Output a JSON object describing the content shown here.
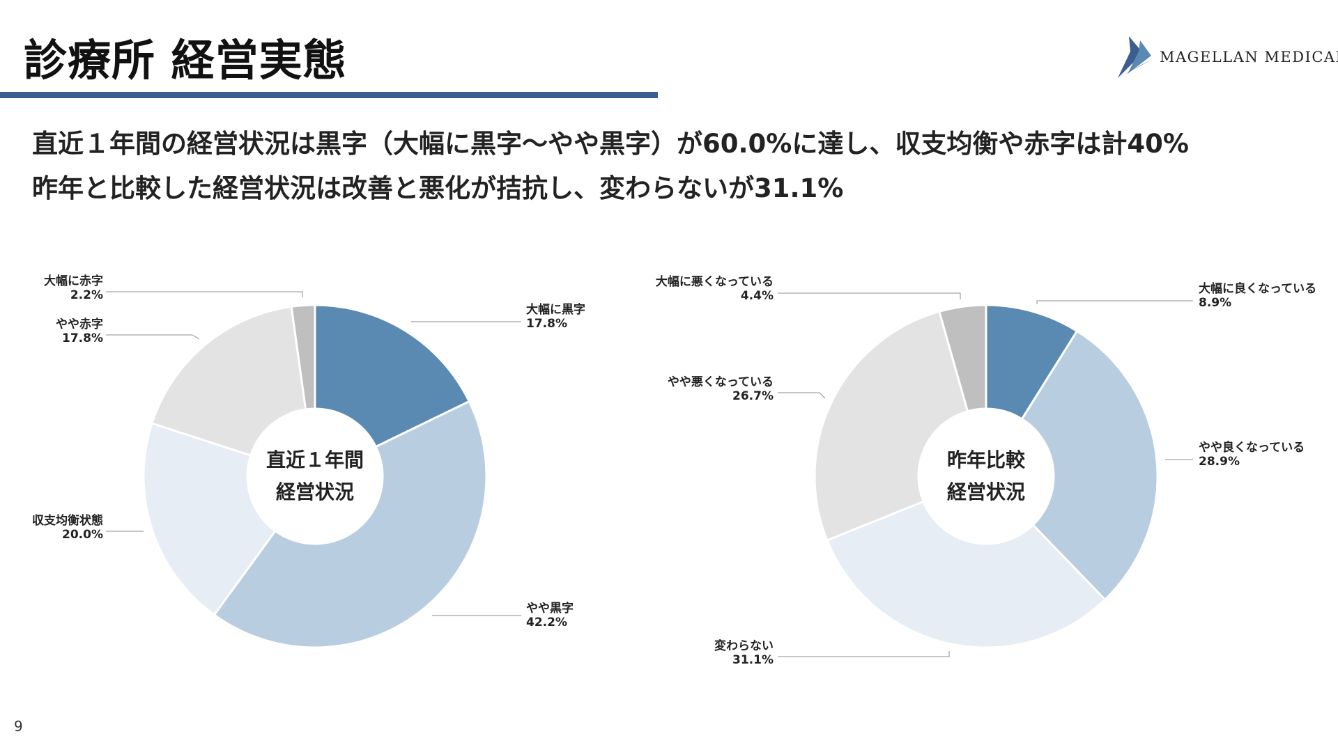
{
  "page": {
    "title": "診療所 経営実態",
    "summary_lines": [
      "直近１年間の経営状況は黒字（大幅に黒字〜やや黒字）が60.0%に達し、収支均衡や赤字は計40%",
      "昨年と比較した経営状況は改善と悪化が拮抗し、変わらないが31.1%"
    ],
    "page_number": "9"
  },
  "logo": {
    "text": "MAGELLAN MEDICAL",
    "icon": "magellan-sail-logo",
    "color": "#3b5d8f"
  },
  "chart_data": [
    {
      "type": "pie",
      "title": "",
      "center_label": [
        "直近１年間",
        "経営状況"
      ],
      "categories": [
        "大幅に黒字",
        "やや黒字",
        "収支均衡状態",
        "やや赤字",
        "大幅に赤字"
      ],
      "values": [
        17.8,
        42.2,
        20.0,
        17.8,
        2.2
      ],
      "value_labels": [
        "17.8%",
        "42.2%",
        "20.0%",
        "17.8%",
        "2.2%"
      ],
      "colors": [
        "#5a8ab2",
        "#b9cde0",
        "#e6edf5",
        "#e3e3e3",
        "#bfbfbf"
      ],
      "donut": true
    },
    {
      "type": "pie",
      "title": "",
      "center_label": [
        "昨年比較",
        "経営状況"
      ],
      "categories": [
        "大幅に良くなっている",
        "やや良くなっている",
        "変わらない",
        "やや悪くなっている",
        "大幅に悪くなっている"
      ],
      "values": [
        8.9,
        28.9,
        31.1,
        26.7,
        4.4
      ],
      "value_labels": [
        "8.9%",
        "28.9%",
        "31.1%",
        "26.7%",
        "4.4%"
      ],
      "colors": [
        "#5a8ab2",
        "#b9cde0",
        "#e6edf5",
        "#e3e3e3",
        "#bfbfbf"
      ],
      "donut": true
    }
  ]
}
